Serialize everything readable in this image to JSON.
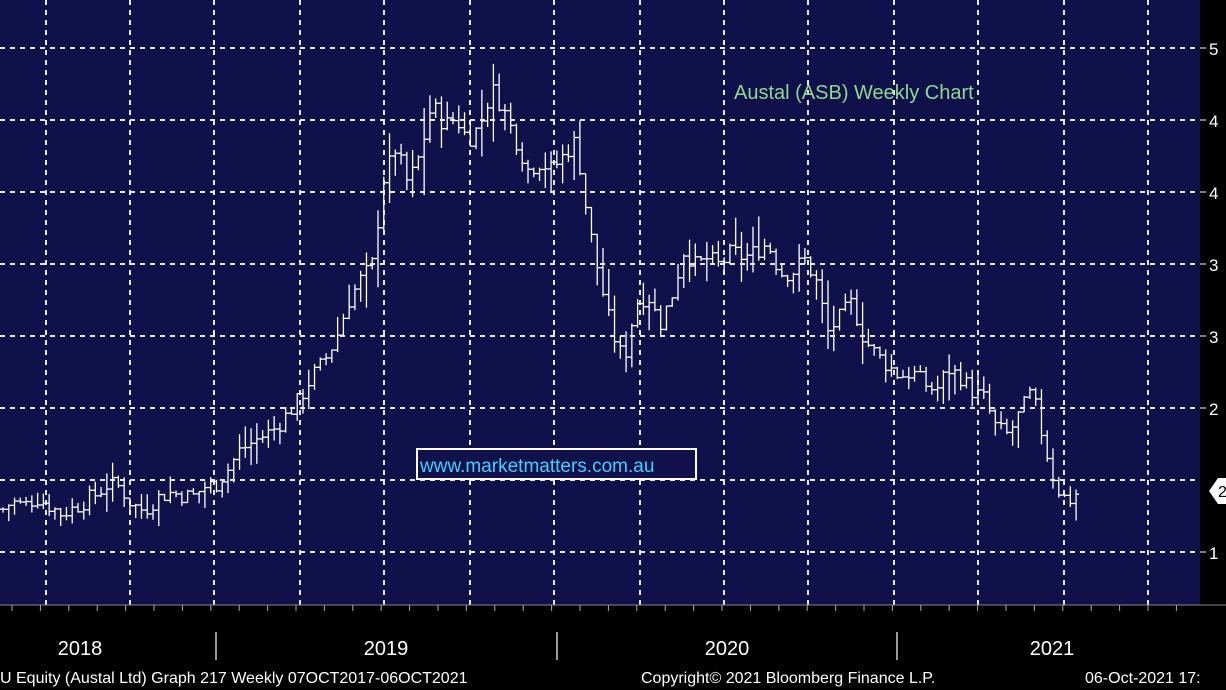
{
  "chart_data": {
    "type": "ohlc",
    "title": "Austal (ASB) Weekly Chart",
    "watermark": "www.marketmatters.com.au",
    "x_labels": [
      "2018",
      "2019",
      "2020",
      "2021"
    ],
    "y_ticks": [
      "1",
      "2",
      "2",
      "3",
      "3",
      "4",
      "4",
      "5"
    ],
    "last_price_marker": "2",
    "grid": true,
    "colors": {
      "background": "#10104a",
      "bars": "#ffffff",
      "title": "#8fd890",
      "watermark": "#3fd2ff"
    },
    "x_range": [
      2017.76,
      2021.76
    ],
    "ylim": [
      0.9,
      5.0
    ],
    "points": [
      [
        2017.77,
        1.55
      ],
      [
        2017.8,
        1.6
      ],
      [
        2017.84,
        1.57
      ],
      [
        2017.88,
        1.63
      ],
      [
        2017.92,
        1.58
      ],
      [
        2017.96,
        1.52
      ],
      [
        2018.0,
        1.55
      ],
      [
        2018.04,
        1.6
      ],
      [
        2018.08,
        1.65
      ],
      [
        2018.12,
        1.72
      ],
      [
        2018.16,
        1.7
      ],
      [
        2018.2,
        1.58
      ],
      [
        2018.24,
        1.54
      ],
      [
        2018.28,
        1.62
      ],
      [
        2018.32,
        1.66
      ],
      [
        2018.36,
        1.65
      ],
      [
        2018.4,
        1.63
      ],
      [
        2018.44,
        1.7
      ],
      [
        2018.48,
        1.72
      ],
      [
        2018.52,
        1.82
      ],
      [
        2018.56,
        1.95
      ],
      [
        2018.6,
        2.0
      ],
      [
        2018.64,
        2.05
      ],
      [
        2018.68,
        2.1
      ],
      [
        2018.72,
        2.2
      ],
      [
        2018.76,
        2.3
      ],
      [
        2018.8,
        2.45
      ],
      [
        2018.84,
        2.55
      ],
      [
        2018.88,
        2.7
      ],
      [
        2018.92,
        2.95
      ],
      [
        2018.96,
        3.1
      ],
      [
        2019.0,
        3.2
      ],
      [
        2019.04,
        3.8
      ],
      [
        2019.08,
        4.0
      ],
      [
        2019.12,
        3.75
      ],
      [
        2019.16,
        3.95
      ],
      [
        2019.2,
        4.3
      ],
      [
        2019.24,
        4.15
      ],
      [
        2019.28,
        4.2
      ],
      [
        2019.32,
        4.05
      ],
      [
        2019.36,
        4.15
      ],
      [
        2019.4,
        4.4
      ],
      [
        2019.44,
        4.25
      ],
      [
        2019.48,
        4.05
      ],
      [
        2019.52,
        3.85
      ],
      [
        2019.56,
        3.9
      ],
      [
        2019.6,
        3.85
      ],
      [
        2019.64,
        3.95
      ],
      [
        2019.68,
        4.05
      ],
      [
        2019.72,
        3.5
      ],
      [
        2019.76,
        3.1
      ],
      [
        2019.8,
        2.75
      ],
      [
        2019.84,
        2.55
      ],
      [
        2019.88,
        2.95
      ],
      [
        2019.92,
        3.0
      ],
      [
        2019.96,
        2.8
      ],
      [
        2020.0,
        3.0
      ],
      [
        2020.04,
        3.3
      ],
      [
        2020.08,
        3.2
      ],
      [
        2020.12,
        3.25
      ],
      [
        2020.16,
        3.2
      ],
      [
        2020.2,
        3.3
      ],
      [
        2020.24,
        3.25
      ],
      [
        2020.28,
        3.3
      ],
      [
        2020.32,
        3.35
      ],
      [
        2020.36,
        3.15
      ],
      [
        2020.4,
        3.15
      ],
      [
        2020.44,
        3.25
      ],
      [
        2020.48,
        3.1
      ],
      [
        2020.52,
        2.75
      ],
      [
        2020.56,
        2.85
      ],
      [
        2020.6,
        2.95
      ],
      [
        2020.64,
        2.7
      ],
      [
        2020.68,
        2.6
      ],
      [
        2020.72,
        2.52
      ],
      [
        2020.76,
        2.45
      ],
      [
        2020.8,
        2.48
      ],
      [
        2020.84,
        2.4
      ],
      [
        2020.88,
        2.35
      ],
      [
        2020.92,
        2.5
      ],
      [
        2020.96,
        2.45
      ],
      [
        2021.0,
        2.35
      ],
      [
        2021.04,
        2.3
      ],
      [
        2021.08,
        2.1
      ],
      [
        2021.12,
        2.05
      ],
      [
        2021.16,
        2.2
      ],
      [
        2021.2,
        2.35
      ],
      [
        2021.24,
        2.0
      ],
      [
        2021.28,
        1.7
      ],
      [
        2021.32,
        1.6
      ],
      [
        2021.36,
        1.68
      ]
    ]
  },
  "footer": {
    "left": "U Equity (Austal Ltd) Graph 217  Weekly 07OCT2017-06OCT2021",
    "center": "Copyright© 2021 Bloomberg Finance L.P.",
    "right": "06-Oct-2021 17:"
  }
}
